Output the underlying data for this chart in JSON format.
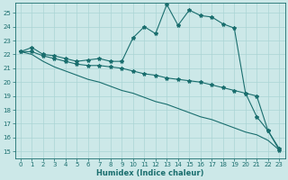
{
  "bg_color": "#cce8e8",
  "grid_color": "#aad4d4",
  "line_color": "#1a6e6e",
  "xlabel": "Humidex (Indice chaleur)",
  "xlim": [
    -0.5,
    23.5
  ],
  "ylim": [
    14.5,
    25.7
  ],
  "xticks": [
    0,
    1,
    2,
    3,
    4,
    5,
    6,
    7,
    8,
    9,
    10,
    11,
    12,
    13,
    14,
    15,
    16,
    17,
    18,
    19,
    20,
    21,
    22,
    23
  ],
  "yticks": [
    15,
    16,
    17,
    18,
    19,
    20,
    21,
    22,
    23,
    24,
    25
  ],
  "series1_x": [
    0,
    1,
    2,
    3,
    4,
    5,
    6,
    7,
    8,
    9,
    10,
    11,
    12,
    13,
    14,
    15,
    16,
    17,
    18,
    19,
    20,
    21,
    22,
    23
  ],
  "series1_y": [
    22.2,
    22.5,
    22.0,
    21.9,
    21.7,
    21.5,
    21.6,
    21.7,
    21.5,
    21.5,
    23.2,
    24.0,
    23.5,
    25.6,
    24.1,
    25.2,
    24.8,
    24.7,
    24.2,
    23.9,
    19.2,
    19.0,
    16.5,
    15.1
  ],
  "series2_x": [
    0,
    1,
    2,
    3,
    4,
    5,
    6,
    7,
    8,
    9,
    10,
    11,
    12,
    13,
    14,
    15,
    16,
    17,
    18,
    19,
    20,
    21,
    22,
    23
  ],
  "series2_y": [
    22.2,
    22.2,
    21.9,
    21.7,
    21.5,
    21.3,
    21.2,
    21.2,
    21.1,
    21.0,
    20.8,
    20.6,
    20.5,
    20.3,
    20.2,
    20.1,
    20.0,
    19.8,
    19.6,
    19.4,
    19.2,
    17.5,
    16.5,
    15.2
  ],
  "series3_x": [
    0,
    1,
    2,
    3,
    4,
    5,
    6,
    7,
    8,
    9,
    10,
    11,
    12,
    13,
    14,
    15,
    16,
    17,
    18,
    19,
    20,
    21,
    22,
    23
  ],
  "series3_y": [
    22.2,
    22.0,
    21.5,
    21.1,
    20.8,
    20.5,
    20.2,
    20.0,
    19.7,
    19.4,
    19.2,
    18.9,
    18.6,
    18.4,
    18.1,
    17.8,
    17.5,
    17.3,
    17.0,
    16.7,
    16.4,
    16.2,
    15.8,
    15.1
  ],
  "marker": "*",
  "markersize": 3,
  "linewidth": 0.8,
  "tick_fontsize": 5.0,
  "xlabel_fontsize": 6.0
}
